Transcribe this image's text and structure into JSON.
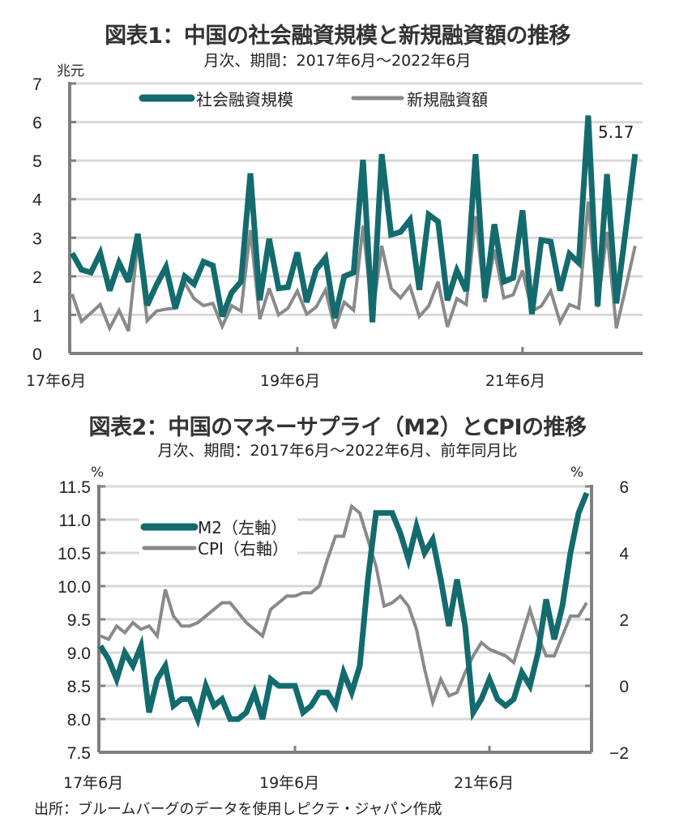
{
  "chart_data": [
    {
      "type": "line",
      "title": "図表1：中国の社会融資規模と新規融資額の推移",
      "subtitle": "月次、期間：2017年6月～2022年6月",
      "ylabel": "兆元",
      "ylim": [
        0,
        7
      ],
      "yticks": [
        "0",
        "1",
        "2",
        "3",
        "4",
        "5",
        "6",
        "7"
      ],
      "xtick_labels": [
        {
          "label": "17年6月",
          "index": 0
        },
        {
          "label": "19年6月",
          "index": 24
        },
        {
          "label": "21年6月",
          "index": 48
        }
      ],
      "grid": true,
      "legend_position": "top",
      "annotation": {
        "text": "5.17",
        "index": 60
      },
      "series": [
        {
          "name": "社会融資規模",
          "color": "#146b6e",
          "width": 7,
          "values": [
            2.6,
            2.17,
            2.1,
            2.6,
            1.63,
            2.35,
            1.86,
            3.1,
            1.25,
            1.78,
            2.24,
            1.17,
            2.0,
            1.8,
            2.38,
            2.28,
            0.96,
            1.58,
            1.86,
            4.67,
            1.38,
            2.97,
            1.69,
            1.72,
            2.62,
            1.33,
            2.17,
            2.48,
            0.92,
            2.0,
            2.1,
            5.02,
            0.81,
            5.17,
            3.08,
            3.15,
            3.46,
            1.65,
            3.6,
            3.42,
            1.38,
            2.15,
            1.62,
            5.17,
            1.44,
            3.35,
            1.86,
            1.96,
            3.71,
            1.02,
            2.94,
            2.9,
            1.63,
            2.58,
            2.35,
            6.17,
            1.23,
            4.65,
            1.3,
            3.2,
            5.17
          ]
        },
        {
          "name": "新規融資額",
          "color": "#8a8a8a",
          "width": 4,
          "values": [
            1.54,
            0.83,
            1.05,
            1.27,
            0.65,
            1.12,
            0.58,
            2.9,
            0.85,
            1.1,
            1.15,
            1.17,
            1.83,
            1.42,
            1.24,
            1.3,
            0.7,
            1.24,
            1.1,
            3.2,
            0.89,
            1.69,
            1.0,
            1.17,
            1.62,
            1.02,
            1.2,
            1.65,
            0.65,
            1.33,
            1.12,
            3.31,
            0.96,
            2.79,
            1.69,
            1.44,
            1.75,
            0.96,
            1.23,
            1.86,
            0.69,
            1.42,
            1.27,
            3.56,
            1.33,
            2.69,
            1.44,
            1.52,
            2.15,
            1.1,
            1.23,
            1.62,
            0.81,
            1.27,
            1.17,
            3.94,
            1.2,
            3.15,
            0.65,
            1.7,
            2.79
          ]
        }
      ]
    },
    {
      "type": "line",
      "title": "図表2：中国のマネーサプライ（M2）とCPIの推移",
      "subtitle": "月次、期間：2017年6月～2022年6月、前年同月比",
      "ylabel_left": "%",
      "ylabel_right": "%",
      "ylim_left": [
        7.5,
        11.5
      ],
      "ylim_right": [
        -2,
        6
      ],
      "yticks_left": [
        "7.5",
        "8.0",
        "8.5",
        "9.0",
        "9.5",
        "10.0",
        "10.5",
        "11.0",
        "11.5"
      ],
      "yticks_right": [
        "-2",
        "0",
        "2",
        "4",
        "6"
      ],
      "xtick_labels": [
        {
          "label": "17年6月",
          "index": 0
        },
        {
          "label": "19年6月",
          "index": 24
        },
        {
          "label": "21年6月",
          "index": 48
        }
      ],
      "grid": true,
      "legend_position": "top-left",
      "series": [
        {
          "name": "M2（左軸）",
          "axis": "left",
          "color": "#146b6e",
          "width": 7,
          "values": [
            9.1,
            8.9,
            8.6,
            9.0,
            8.8,
            9.1,
            8.1,
            8.6,
            8.8,
            8.2,
            8.3,
            8.3,
            8.0,
            8.5,
            8.2,
            8.3,
            8.0,
            8.0,
            8.1,
            8.4,
            8.0,
            8.6,
            8.5,
            8.5,
            8.5,
            8.1,
            8.2,
            8.4,
            8.4,
            8.2,
            8.7,
            8.4,
            8.8,
            10.1,
            11.1,
            11.1,
            11.1,
            10.8,
            10.4,
            10.9,
            10.5,
            10.7,
            10.1,
            9.4,
            10.1,
            9.4,
            8.1,
            8.3,
            8.6,
            8.3,
            8.2,
            8.3,
            8.7,
            8.5,
            9.0,
            9.8,
            9.2,
            9.7,
            10.5,
            11.1,
            11.4
          ]
        },
        {
          "name": "CPI（右軸）",
          "axis": "right",
          "color": "#8a8a8a",
          "width": 4,
          "values": [
            1.5,
            1.4,
            1.8,
            1.6,
            1.9,
            1.7,
            1.8,
            1.5,
            2.9,
            2.1,
            1.8,
            1.8,
            1.9,
            2.1,
            2.3,
            2.5,
            2.5,
            2.2,
            1.9,
            1.7,
            1.5,
            2.3,
            2.5,
            2.7,
            2.7,
            2.8,
            2.8,
            3.0,
            3.8,
            4.5,
            4.5,
            5.4,
            5.2,
            4.4,
            3.6,
            2.4,
            2.5,
            2.7,
            2.4,
            1.7,
            0.5,
            -0.5,
            0.2,
            -0.3,
            -0.2,
            0.4,
            0.9,
            1.3,
            1.1,
            1.0,
            0.9,
            0.7,
            1.5,
            2.3,
            1.5,
            0.9,
            0.9,
            1.5,
            2.1,
            2.1,
            2.5
          ]
        }
      ]
    }
  ],
  "source": "出所：ブルームバーグのデータを使用しピクテ・ジャパン作成"
}
